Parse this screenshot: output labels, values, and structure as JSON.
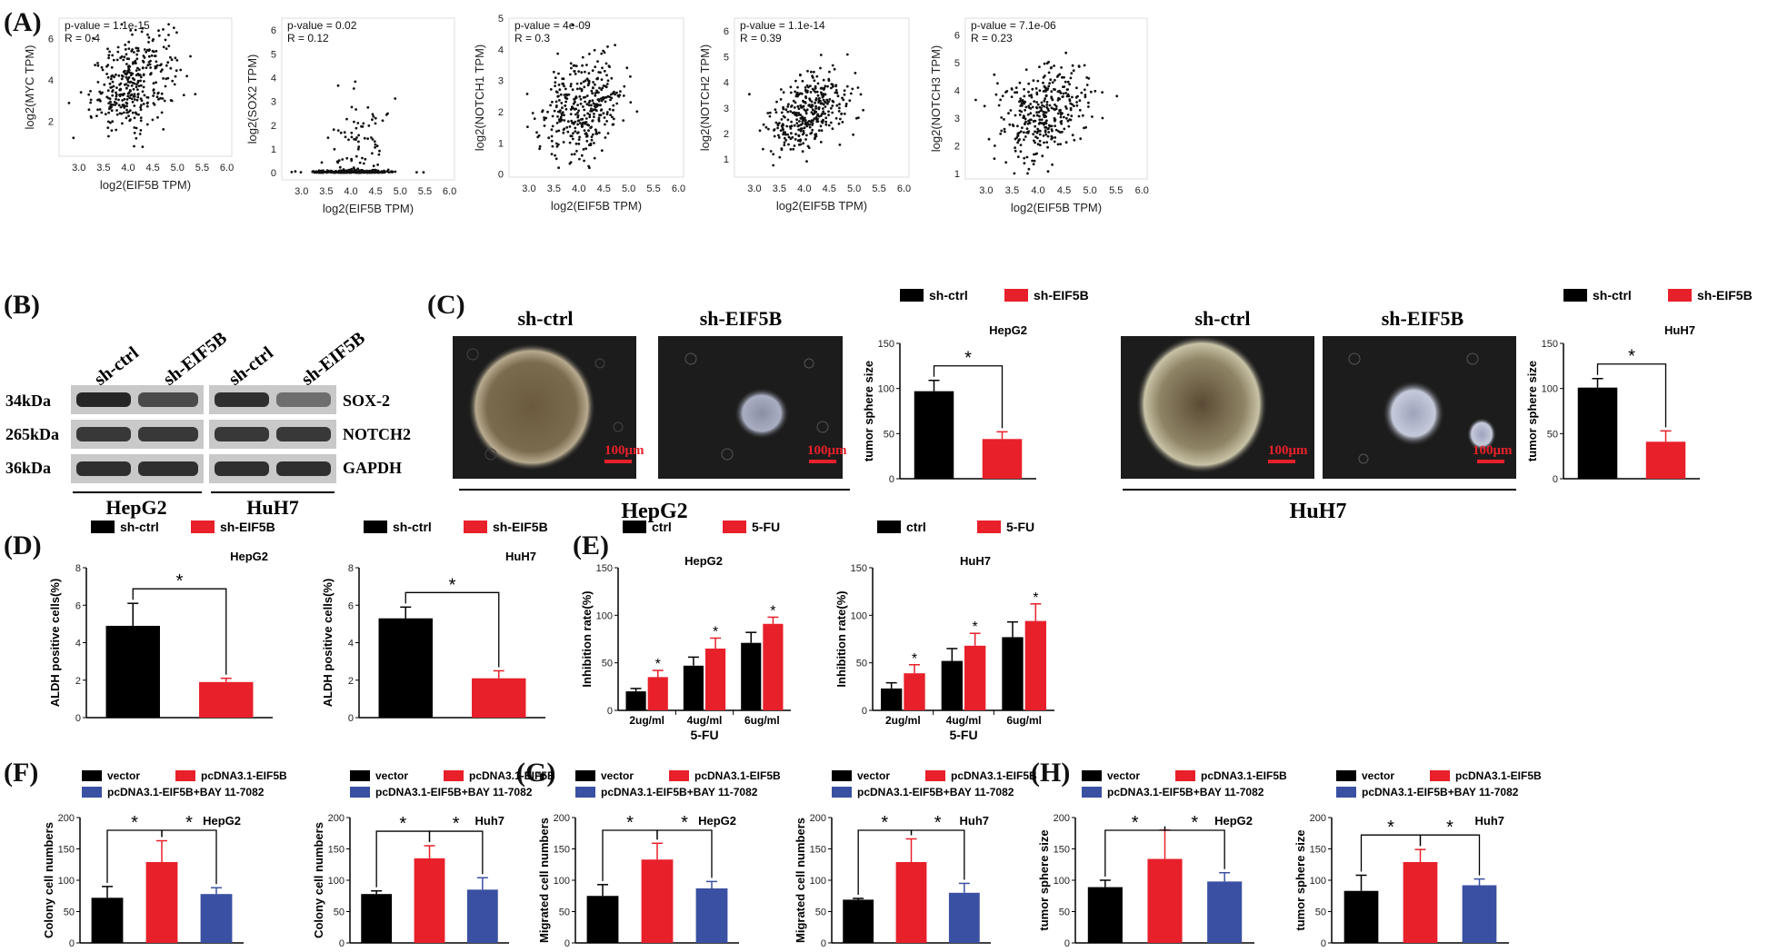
{
  "panel_labels": {
    "A": "(A)",
    "B": "(B)",
    "C": "(C)",
    "D": "(D)",
    "E": "(E)",
    "F": "(F)",
    "G": "(G)",
    "H": "(H)"
  },
  "colors": {
    "black": "#000000",
    "red": "#e8202a",
    "blue": "#3a50a2"
  },
  "chart_data": [
    {
      "id": "A1",
      "type": "scatter",
      "xlabel": "log2(EIF5B TPM)",
      "ylabel": "log2(MYC TPM)",
      "stats": [
        "p-value = 1.1e-15",
        "R = 0.4"
      ],
      "xlim": [
        2.6,
        6.1
      ],
      "ylim": [
        0.3,
        7.0
      ],
      "xticks": [
        "3.0",
        "3.5",
        "4.0",
        "4.5",
        "5.0",
        "5.5",
        "6.0"
      ],
      "yticks": [
        "2",
        "4",
        "6"
      ],
      "ytick_values": [
        2,
        4,
        6
      ],
      "trend": {
        "slope": 1.1,
        "intercept": -0.6,
        "noise": 1.1,
        "ymin": 0.5,
        "ymax": 6.7
      }
    },
    {
      "id": "A2",
      "type": "scatter",
      "xlabel": "log2(EIF5B TPM)",
      "ylabel": "log2(SOX2 TPM)",
      "stats": [
        "p-value = 0.02",
        "R = 0.12"
      ],
      "xlim": [
        2.6,
        6.1
      ],
      "ylim": [
        -0.3,
        6.5
      ],
      "xticks": [
        "3.0",
        "3.5",
        "4.0",
        "4.5",
        "5.0",
        "5.5",
        "6.0"
      ],
      "yticks": [
        "0",
        "1",
        "2",
        "3",
        "4",
        "5",
        "6"
      ],
      "ytick_values": [
        0,
        1,
        2,
        3,
        4,
        5,
        6
      ],
      "trend": {
        "zero_inflated": true
      }
    },
    {
      "id": "A3",
      "type": "scatter",
      "xlabel": "log2(EIF5B TPM)",
      "ylabel": "log2(NOTCH1 TPM)",
      "stats": [
        "p-value = 4e-09",
        "R = 0.3"
      ],
      "xlim": [
        2.6,
        6.1
      ],
      "ylim": [
        -0.1,
        5.0
      ],
      "xticks": [
        "3.0",
        "3.5",
        "4.0",
        "4.5",
        "5.0",
        "5.5",
        "6.0"
      ],
      "yticks": [
        "0",
        "1",
        "2",
        "3",
        "4",
        "5"
      ],
      "ytick_values": [
        0,
        1,
        2,
        3,
        4,
        5
      ],
      "trend": {
        "slope": 0.6,
        "intercept": -0.3,
        "noise": 0.8,
        "ymin": 0.2,
        "ymax": 4.8
      }
    },
    {
      "id": "A4",
      "type": "scatter",
      "xlabel": "log2(EIF5B TPM)",
      "ylabel": "log2(NOTCH2 TPM)",
      "stats": [
        "p-value = 1.1e-14",
        "R = 0.39"
      ],
      "xlim": [
        2.6,
        6.1
      ],
      "ylim": [
        0.3,
        6.5
      ],
      "xticks": [
        "3.0",
        "3.5",
        "4.0",
        "4.5",
        "5.0",
        "5.5",
        "6.0"
      ],
      "yticks": [
        "1",
        "2",
        "3",
        "4",
        "5",
        "6"
      ],
      "ytick_values": [
        1,
        2,
        3,
        4,
        5,
        6
      ],
      "trend": {
        "slope": 0.8,
        "intercept": -0.4,
        "noise": 0.75,
        "ymin": 0.5,
        "ymax": 6.3
      }
    },
    {
      "id": "A5",
      "type": "scatter",
      "xlabel": "log2(EIF5B TPM)",
      "ylabel": "log2(NOTCH3 TPM)",
      "stats": [
        "p-value = 7.1e-06",
        "R = 0.23"
      ],
      "xlim": [
        2.6,
        6.1
      ],
      "ylim": [
        0.8,
        6.6
      ],
      "xticks": [
        "3.0",
        "3.5",
        "4.0",
        "4.5",
        "5.0",
        "5.5",
        "6.0"
      ],
      "yticks": [
        "1",
        "2",
        "3",
        "4",
        "5",
        "6"
      ],
      "ytick_values": [
        1,
        2,
        3,
        4,
        5,
        6
      ],
      "trend": {
        "slope": 0.6,
        "intercept": 0.8,
        "noise": 0.8,
        "ymin": 1.0,
        "ymax": 6.4
      }
    },
    {
      "id": "C1",
      "type": "bar",
      "ylabel": "tumor sphere size",
      "subtitle": "HepG2",
      "ylim": [
        0,
        150
      ],
      "yticks": [
        0,
        50,
        100,
        150
      ],
      "legend": [
        "sh-ctrl",
        "sh-EIF5B"
      ],
      "series": [
        {
          "name": "sh-ctrl",
          "values": [
            97
          ],
          "errors": [
            12
          ]
        },
        {
          "name": "sh-EIF5B",
          "values": [
            44
          ],
          "errors": [
            8
          ]
        }
      ],
      "significance": [
        {
          "from": 0,
          "to": 1,
          "label": "*"
        }
      ]
    },
    {
      "id": "C2",
      "type": "bar",
      "ylabel": "tumor sphere size",
      "subtitle": "HuH7",
      "ylim": [
        0,
        150
      ],
      "yticks": [
        0,
        50,
        100,
        150
      ],
      "legend": [
        "sh-ctrl",
        "sh-EIF5B"
      ],
      "series": [
        {
          "name": "sh-ctrl",
          "values": [
            101
          ],
          "errors": [
            10
          ]
        },
        {
          "name": "sh-EIF5B",
          "values": [
            41
          ],
          "errors": [
            12
          ]
        }
      ],
      "significance": [
        {
          "from": 0,
          "to": 1,
          "label": "*"
        }
      ]
    },
    {
      "id": "D1",
      "type": "bar",
      "ylabel": "ALDH positive cells(%)",
      "subtitle": "HepG2",
      "ylim": [
        0,
        8
      ],
      "yticks": [
        0,
        2,
        4,
        6,
        8
      ],
      "legend": [
        "sh-ctrl",
        "sh-EIF5B"
      ],
      "series": [
        {
          "name": "sh-ctrl",
          "values": [
            4.9
          ],
          "errors": [
            1.2
          ]
        },
        {
          "name": "sh-EIF5B",
          "values": [
            1.9
          ],
          "errors": [
            0.2
          ]
        }
      ],
      "significance": [
        {
          "from": 0,
          "to": 1,
          "label": "*"
        }
      ]
    },
    {
      "id": "D2",
      "type": "bar",
      "ylabel": "ALDH positive cells(%)",
      "subtitle": "HuH7",
      "ylim": [
        0,
        8
      ],
      "yticks": [
        0,
        2,
        4,
        6,
        8
      ],
      "legend": [
        "sh-ctrl",
        "sh-EIF5B"
      ],
      "series": [
        {
          "name": "sh-ctrl",
          "values": [
            5.3
          ],
          "errors": [
            0.6
          ]
        },
        {
          "name": "sh-EIF5B",
          "values": [
            2.1
          ],
          "errors": [
            0.4
          ]
        }
      ],
      "significance": [
        {
          "from": 0,
          "to": 1,
          "label": "*"
        }
      ]
    },
    {
      "id": "E1",
      "type": "bar",
      "ylabel": "Inhibition rate(%)",
      "xlabel": "5-FU",
      "subtitle": "HepG2",
      "ylim": [
        0,
        150
      ],
      "yticks": [
        0,
        50,
        100,
        150
      ],
      "categories": [
        "2ug/ml",
        "4ug/ml",
        "6ug/ml"
      ],
      "legend": [
        "ctrl",
        "5-FU"
      ],
      "series": [
        {
          "name": "ctrl",
          "values": [
            20,
            47,
            71
          ],
          "errors": [
            3,
            9,
            11
          ]
        },
        {
          "name": "5-FU",
          "values": [
            35,
            65,
            91
          ],
          "errors": [
            7,
            11,
            7
          ]
        }
      ],
      "significance_labels": [
        "*",
        "*",
        "*"
      ]
    },
    {
      "id": "E2",
      "type": "bar",
      "ylabel": "Inhibition rate(%)",
      "xlabel": "5-FU",
      "subtitle": "HuH7",
      "ylim": [
        0,
        150
      ],
      "yticks": [
        0,
        50,
        100,
        150
      ],
      "categories": [
        "2ug/ml",
        "4ug/ml",
        "6ug/ml"
      ],
      "legend": [
        "ctrl",
        "5-FU"
      ],
      "series": [
        {
          "name": "ctrl",
          "values": [
            23,
            52,
            77
          ],
          "errors": [
            6,
            13,
            16
          ]
        },
        {
          "name": "5-FU",
          "values": [
            39,
            68,
            94
          ],
          "errors": [
            9,
            13,
            18
          ]
        }
      ],
      "significance_labels": [
        "*",
        "*",
        "*"
      ]
    },
    {
      "id": "F1",
      "type": "bar",
      "ylabel": "Colony cell numbers",
      "subtitle": "HepG2",
      "ylim": [
        0,
        200
      ],
      "yticks": [
        0,
        50,
        100,
        150,
        200
      ],
      "legend": [
        "vector",
        "pcDNA3.1-EIF5B",
        "pcDNA3.1-EIF5B+BAY 11-7082"
      ],
      "series": [
        {
          "name": "vector",
          "values": [
            72
          ],
          "errors": [
            18
          ]
        },
        {
          "name": "pcDNA3.1-EIF5B",
          "values": [
            129
          ],
          "errors": [
            34
          ]
        },
        {
          "name": "pcDNA3.1-EIF5B+BAY 11-7082",
          "values": [
            78
          ],
          "errors": [
            10
          ]
        }
      ],
      "significance": [
        {
          "from": 0,
          "to": 1,
          "label": "*"
        },
        {
          "from": 1,
          "to": 2,
          "label": "*"
        }
      ]
    },
    {
      "id": "F2",
      "type": "bar",
      "ylabel": "Colony cell numbers",
      "subtitle": "Huh7",
      "ylim": [
        0,
        200
      ],
      "yticks": [
        0,
        50,
        100,
        150,
        200
      ],
      "legend": [
        "vector",
        "pcDNA3.1-EIF5B",
        "pcDNA3.1-EIF5B+BAY 11-7082"
      ],
      "series": [
        {
          "name": "vector",
          "values": [
            78
          ],
          "errors": [
            5
          ]
        },
        {
          "name": "pcDNA3.1-EIF5B",
          "values": [
            135
          ],
          "errors": [
            20
          ]
        },
        {
          "name": "pcDNA3.1-EIF5B+BAY 11-7082",
          "values": [
            85
          ],
          "errors": [
            19
          ]
        }
      ],
      "significance": [
        {
          "from": 0,
          "to": 1,
          "label": "*"
        },
        {
          "from": 1,
          "to": 2,
          "label": "*"
        }
      ]
    },
    {
      "id": "G1",
      "type": "bar",
      "ylabel": "Migrated cell numbers",
      "subtitle": "HepG2",
      "ylim": [
        0,
        200
      ],
      "yticks": [
        0,
        50,
        100,
        150,
        200
      ],
      "legend": [
        "vector",
        "pcDNA3.1-EIF5B",
        "pcDNA3.1-EIF5B+BAY 11-7082"
      ],
      "series": [
        {
          "name": "vector",
          "values": [
            75
          ],
          "errors": [
            18
          ]
        },
        {
          "name": "pcDNA3.1-EIF5B",
          "values": [
            133
          ],
          "errors": [
            26
          ]
        },
        {
          "name": "pcDNA3.1-EIF5B+BAY 11-7082",
          "values": [
            87
          ],
          "errors": [
            11
          ]
        }
      ],
      "significance": [
        {
          "from": 0,
          "to": 1,
          "label": "*"
        },
        {
          "from": 1,
          "to": 2,
          "label": "*"
        }
      ]
    },
    {
      "id": "G2",
      "type": "bar",
      "ylabel": "Migrated cell numbers",
      "subtitle": "Huh7",
      "ylim": [
        0,
        200
      ],
      "yticks": [
        0,
        50,
        100,
        150,
        200
      ],
      "legend": [
        "vector",
        "pcDNA3.1-EIF5B",
        "pcDNA3.1-EIF5B+BAY 11-7082"
      ],
      "series": [
        {
          "name": "vector",
          "values": [
            69
          ],
          "errors": [
            2
          ]
        },
        {
          "name": "pcDNA3.1-EIF5B",
          "values": [
            129
          ],
          "errors": [
            37
          ]
        },
        {
          "name": "pcDNA3.1-EIF5B+BAY 11-7082",
          "values": [
            80
          ],
          "errors": [
            15
          ]
        }
      ],
      "significance": [
        {
          "from": 0,
          "to": 1,
          "label": "*"
        },
        {
          "from": 1,
          "to": 2,
          "label": "*"
        }
      ]
    },
    {
      "id": "H1",
      "type": "bar",
      "ylabel": "tumor sphere size",
      "subtitle": "HepG2",
      "ylim": [
        0,
        200
      ],
      "yticks": [
        0,
        50,
        100,
        150,
        200
      ],
      "legend": [
        "vector",
        "pcDNA3.1-EIF5B",
        "pcDNA3.1-EIF5B+BAY 11-7082"
      ],
      "series": [
        {
          "name": "vector",
          "values": [
            89
          ],
          "errors": [
            11
          ]
        },
        {
          "name": "pcDNA3.1-EIF5B",
          "values": [
            134
          ],
          "errors": [
            46
          ]
        },
        {
          "name": "pcDNA3.1-EIF5B+BAY 11-7082",
          "values": [
            98
          ],
          "errors": [
            14
          ]
        }
      ],
      "significance": [
        {
          "from": 0,
          "to": 1,
          "label": "*"
        },
        {
          "from": 1,
          "to": 2,
          "label": "*"
        }
      ]
    },
    {
      "id": "H2",
      "type": "bar",
      "ylabel": "tumor sphere size",
      "subtitle": "Huh7",
      "ylim": [
        0,
        200
      ],
      "yticks": [
        0,
        50,
        100,
        150,
        200
      ],
      "legend": [
        "vector",
        "pcDNA3.1-EIF5B",
        "pcDNA3.1-EIF5B+BAY 11-7082"
      ],
      "series": [
        {
          "name": "vector",
          "values": [
            83
          ],
          "errors": [
            25
          ]
        },
        {
          "name": "pcDNA3.1-EIF5B",
          "values": [
            129
          ],
          "errors": [
            20
          ]
        },
        {
          "name": "pcDNA3.1-EIF5B+BAY 11-7082",
          "values": [
            92
          ],
          "errors": [
            10
          ]
        }
      ],
      "significance": [
        {
          "from": 0,
          "to": 1,
          "label": "*"
        },
        {
          "from": 1,
          "to": 2,
          "label": "*"
        }
      ]
    }
  ],
  "western_blot": {
    "lanes": [
      "sh-ctrl",
      "sh-EIF5B",
      "sh-ctrl",
      "sh-EIF5B"
    ],
    "sizes": [
      "34kDa",
      "265kDa",
      "36kDa"
    ],
    "proteins": [
      "SOX-2",
      "NOTCH2",
      "GAPDH"
    ],
    "cells": [
      "HepG2",
      "HuH7"
    ],
    "band_intensity": [
      [
        0.9,
        0.7,
        0.85,
        0.5
      ],
      [
        0.8,
        0.8,
        0.8,
        0.8
      ],
      [
        0.85,
        0.85,
        0.85,
        0.85
      ]
    ]
  },
  "micrographs": {
    "labels": [
      "sh-ctrl",
      "sh-EIF5B",
      "sh-ctrl",
      "sh-EIF5B"
    ],
    "scale_bar": "100μm",
    "groups": [
      "HepG2",
      "HuH7"
    ]
  }
}
